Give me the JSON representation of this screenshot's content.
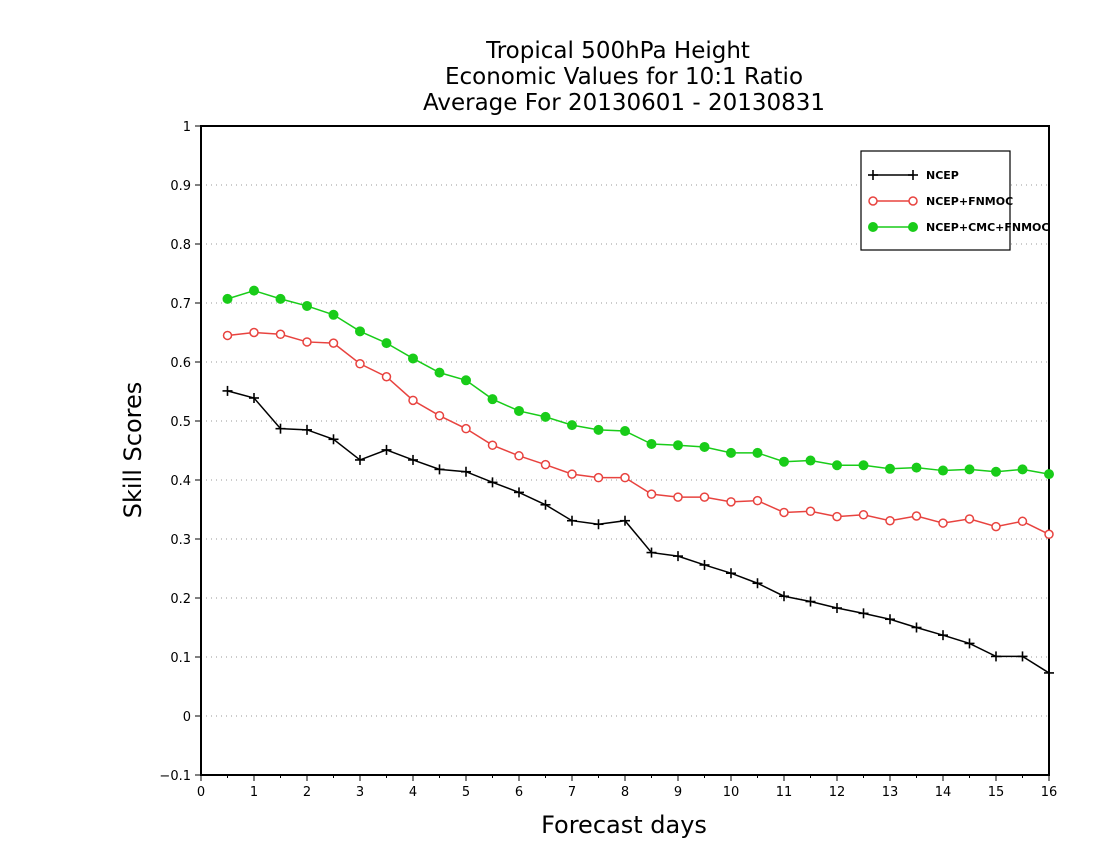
{
  "chart_data": {
    "type": "line",
    "title_lines": [
      "Tropical 500hPa Height",
      "Economic Values for 10:1 Ratio",
      "Average For 20130601 - 20130831"
    ],
    "xlabel": "Forecast days",
    "ylabel": "Skill Scores",
    "xlim": [
      0,
      16
    ],
    "ylim": [
      -0.1,
      1
    ],
    "xticks": [
      "0",
      "1",
      "2",
      "3",
      "4",
      "5",
      "6",
      "7",
      "8",
      "9",
      "10",
      "11",
      "12",
      "13",
      "14",
      "15",
      "16"
    ],
    "yticks": [
      "−0.1",
      "0",
      "0.1",
      "0.2",
      "0.3",
      "0.4",
      "0.5",
      "0.6",
      "0.7",
      "0.8",
      "0.9",
      "1"
    ],
    "grid": "horizontal dotted",
    "legend_position": "top-right",
    "x": [
      0.5,
      1,
      1.5,
      2,
      2.5,
      3,
      3.5,
      4,
      4.5,
      5,
      5.5,
      6,
      6.5,
      7,
      7.5,
      8,
      8.5,
      9,
      9.5,
      10,
      10.5,
      11,
      11.5,
      12,
      12.5,
      13,
      13.5,
      14,
      14.5,
      15,
      15.5,
      16
    ],
    "series": [
      {
        "name": "NCEP",
        "color": "#000000",
        "marker": "plus",
        "values": [
          0.551,
          0.539,
          0.487,
          0.485,
          0.469,
          0.434,
          0.451,
          0.434,
          0.418,
          0.414,
          0.396,
          0.379,
          0.358,
          0.331,
          0.325,
          0.331,
          0.277,
          0.271,
          0.256,
          0.242,
          0.225,
          0.203,
          0.194,
          0.183,
          0.174,
          0.164,
          0.15,
          0.137,
          0.123,
          0.101,
          0.101,
          0.073
        ]
      },
      {
        "name": "NCEP+FNMOC",
        "color": "#e8433f",
        "marker": "open-circle",
        "values": [
          0.645,
          0.65,
          0.647,
          0.634,
          0.632,
          0.597,
          0.575,
          0.535,
          0.509,
          0.487,
          0.459,
          0.441,
          0.426,
          0.41,
          0.404,
          0.404,
          0.376,
          0.371,
          0.371,
          0.363,
          0.365,
          0.345,
          0.347,
          0.338,
          0.341,
          0.331,
          0.339,
          0.327,
          0.334,
          0.321,
          0.33,
          0.308
        ]
      },
      {
        "name": "NCEP+CMC+FNMOC",
        "color": "#19cc19",
        "marker": "filled-circle",
        "values": [
          0.707,
          0.721,
          0.707,
          0.695,
          0.68,
          0.652,
          0.632,
          0.606,
          0.582,
          0.569,
          0.537,
          0.517,
          0.507,
          0.493,
          0.485,
          0.483,
          0.461,
          0.459,
          0.456,
          0.446,
          0.446,
          0.431,
          0.433,
          0.425,
          0.425,
          0.419,
          0.421,
          0.416,
          0.418,
          0.414,
          0.418,
          0.41
        ]
      }
    ]
  }
}
